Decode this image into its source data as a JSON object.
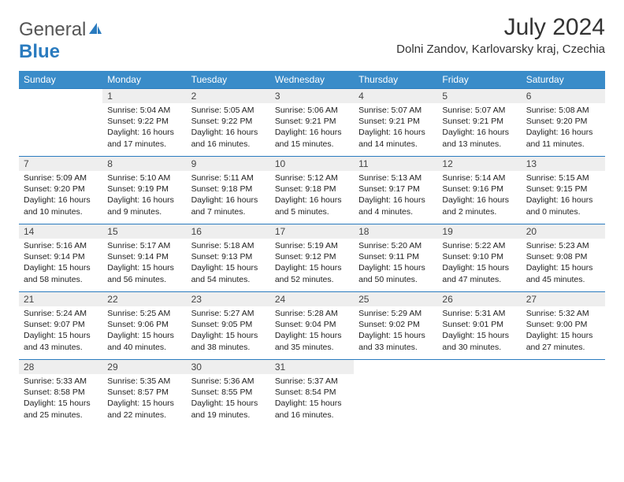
{
  "brand": {
    "part1": "General",
    "part2": "Blue"
  },
  "title": "July 2024",
  "location": "Dolni Zandov, Karlovarsky kraj, Czechia",
  "colors": {
    "header_bg": "#3a8cc9",
    "header_text": "#ffffff",
    "border": "#2a7bbf",
    "daynum_bg": "#eeeeee",
    "text": "#333333"
  },
  "columns": [
    "Sunday",
    "Monday",
    "Tuesday",
    "Wednesday",
    "Thursday",
    "Friday",
    "Saturday"
  ],
  "weeks": [
    [
      null,
      {
        "d": "1",
        "sr": "Sunrise: 5:04 AM",
        "ss": "Sunset: 9:22 PM",
        "dl1": "Daylight: 16 hours",
        "dl2": "and 17 minutes."
      },
      {
        "d": "2",
        "sr": "Sunrise: 5:05 AM",
        "ss": "Sunset: 9:22 PM",
        "dl1": "Daylight: 16 hours",
        "dl2": "and 16 minutes."
      },
      {
        "d": "3",
        "sr": "Sunrise: 5:06 AM",
        "ss": "Sunset: 9:21 PM",
        "dl1": "Daylight: 16 hours",
        "dl2": "and 15 minutes."
      },
      {
        "d": "4",
        "sr": "Sunrise: 5:07 AM",
        "ss": "Sunset: 9:21 PM",
        "dl1": "Daylight: 16 hours",
        "dl2": "and 14 minutes."
      },
      {
        "d": "5",
        "sr": "Sunrise: 5:07 AM",
        "ss": "Sunset: 9:21 PM",
        "dl1": "Daylight: 16 hours",
        "dl2": "and 13 minutes."
      },
      {
        "d": "6",
        "sr": "Sunrise: 5:08 AM",
        "ss": "Sunset: 9:20 PM",
        "dl1": "Daylight: 16 hours",
        "dl2": "and 11 minutes."
      }
    ],
    [
      {
        "d": "7",
        "sr": "Sunrise: 5:09 AM",
        "ss": "Sunset: 9:20 PM",
        "dl1": "Daylight: 16 hours",
        "dl2": "and 10 minutes."
      },
      {
        "d": "8",
        "sr": "Sunrise: 5:10 AM",
        "ss": "Sunset: 9:19 PM",
        "dl1": "Daylight: 16 hours",
        "dl2": "and 9 minutes."
      },
      {
        "d": "9",
        "sr": "Sunrise: 5:11 AM",
        "ss": "Sunset: 9:18 PM",
        "dl1": "Daylight: 16 hours",
        "dl2": "and 7 minutes."
      },
      {
        "d": "10",
        "sr": "Sunrise: 5:12 AM",
        "ss": "Sunset: 9:18 PM",
        "dl1": "Daylight: 16 hours",
        "dl2": "and 5 minutes."
      },
      {
        "d": "11",
        "sr": "Sunrise: 5:13 AM",
        "ss": "Sunset: 9:17 PM",
        "dl1": "Daylight: 16 hours",
        "dl2": "and 4 minutes."
      },
      {
        "d": "12",
        "sr": "Sunrise: 5:14 AM",
        "ss": "Sunset: 9:16 PM",
        "dl1": "Daylight: 16 hours",
        "dl2": "and 2 minutes."
      },
      {
        "d": "13",
        "sr": "Sunrise: 5:15 AM",
        "ss": "Sunset: 9:15 PM",
        "dl1": "Daylight: 16 hours",
        "dl2": "and 0 minutes."
      }
    ],
    [
      {
        "d": "14",
        "sr": "Sunrise: 5:16 AM",
        "ss": "Sunset: 9:14 PM",
        "dl1": "Daylight: 15 hours",
        "dl2": "and 58 minutes."
      },
      {
        "d": "15",
        "sr": "Sunrise: 5:17 AM",
        "ss": "Sunset: 9:14 PM",
        "dl1": "Daylight: 15 hours",
        "dl2": "and 56 minutes."
      },
      {
        "d": "16",
        "sr": "Sunrise: 5:18 AM",
        "ss": "Sunset: 9:13 PM",
        "dl1": "Daylight: 15 hours",
        "dl2": "and 54 minutes."
      },
      {
        "d": "17",
        "sr": "Sunrise: 5:19 AM",
        "ss": "Sunset: 9:12 PM",
        "dl1": "Daylight: 15 hours",
        "dl2": "and 52 minutes."
      },
      {
        "d": "18",
        "sr": "Sunrise: 5:20 AM",
        "ss": "Sunset: 9:11 PM",
        "dl1": "Daylight: 15 hours",
        "dl2": "and 50 minutes."
      },
      {
        "d": "19",
        "sr": "Sunrise: 5:22 AM",
        "ss": "Sunset: 9:10 PM",
        "dl1": "Daylight: 15 hours",
        "dl2": "and 47 minutes."
      },
      {
        "d": "20",
        "sr": "Sunrise: 5:23 AM",
        "ss": "Sunset: 9:08 PM",
        "dl1": "Daylight: 15 hours",
        "dl2": "and 45 minutes."
      }
    ],
    [
      {
        "d": "21",
        "sr": "Sunrise: 5:24 AM",
        "ss": "Sunset: 9:07 PM",
        "dl1": "Daylight: 15 hours",
        "dl2": "and 43 minutes."
      },
      {
        "d": "22",
        "sr": "Sunrise: 5:25 AM",
        "ss": "Sunset: 9:06 PM",
        "dl1": "Daylight: 15 hours",
        "dl2": "and 40 minutes."
      },
      {
        "d": "23",
        "sr": "Sunrise: 5:27 AM",
        "ss": "Sunset: 9:05 PM",
        "dl1": "Daylight: 15 hours",
        "dl2": "and 38 minutes."
      },
      {
        "d": "24",
        "sr": "Sunrise: 5:28 AM",
        "ss": "Sunset: 9:04 PM",
        "dl1": "Daylight: 15 hours",
        "dl2": "and 35 minutes."
      },
      {
        "d": "25",
        "sr": "Sunrise: 5:29 AM",
        "ss": "Sunset: 9:02 PM",
        "dl1": "Daylight: 15 hours",
        "dl2": "and 33 minutes."
      },
      {
        "d": "26",
        "sr": "Sunrise: 5:31 AM",
        "ss": "Sunset: 9:01 PM",
        "dl1": "Daylight: 15 hours",
        "dl2": "and 30 minutes."
      },
      {
        "d": "27",
        "sr": "Sunrise: 5:32 AM",
        "ss": "Sunset: 9:00 PM",
        "dl1": "Daylight: 15 hours",
        "dl2": "and 27 minutes."
      }
    ],
    [
      {
        "d": "28",
        "sr": "Sunrise: 5:33 AM",
        "ss": "Sunset: 8:58 PM",
        "dl1": "Daylight: 15 hours",
        "dl2": "and 25 minutes."
      },
      {
        "d": "29",
        "sr": "Sunrise: 5:35 AM",
        "ss": "Sunset: 8:57 PM",
        "dl1": "Daylight: 15 hours",
        "dl2": "and 22 minutes."
      },
      {
        "d": "30",
        "sr": "Sunrise: 5:36 AM",
        "ss": "Sunset: 8:55 PM",
        "dl1": "Daylight: 15 hours",
        "dl2": "and 19 minutes."
      },
      {
        "d": "31",
        "sr": "Sunrise: 5:37 AM",
        "ss": "Sunset: 8:54 PM",
        "dl1": "Daylight: 15 hours",
        "dl2": "and 16 minutes."
      },
      null,
      null,
      null
    ]
  ]
}
